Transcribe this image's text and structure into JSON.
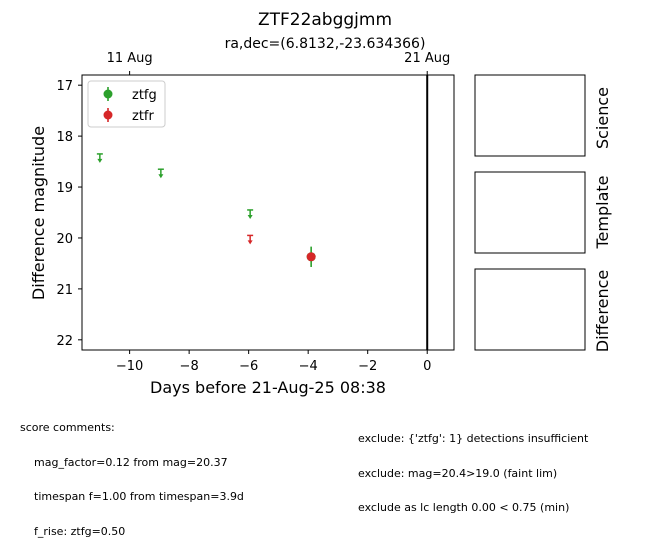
{
  "chart_data": {
    "type": "scatter",
    "title": "ZTF22abggjmm",
    "subtitle": "ra,dec=(6.8132,-23.634366)",
    "xlabel": "Days before 21-Aug-25 08:38",
    "ylabel": "Difference magnitude",
    "xlim": [
      -11.6,
      0.9
    ],
    "ylim": [
      22.2,
      16.8
    ],
    "y_inverted": true,
    "x_ticks": [
      -10,
      -8,
      -6,
      -4,
      -2,
      0
    ],
    "x_tick_labels": [
      "−10",
      "−8",
      "−6",
      "−4",
      "−2",
      "0"
    ],
    "y_ticks": [
      17,
      18,
      19,
      20,
      21,
      22
    ],
    "y_tick_labels": [
      "17",
      "18",
      "19",
      "20",
      "21",
      "22"
    ],
    "top_axis_ticks": [
      {
        "x": -10.0,
        "label": "11 Aug"
      },
      {
        "x": 0.0,
        "label": "21 Aug"
      }
    ],
    "vline_x": 0.0,
    "legend_placement": "top-left",
    "grid": false,
    "series": [
      {
        "name": "ztfg",
        "color": "#2ca02c",
        "detections": [
          {
            "x": -3.9,
            "y": 20.37,
            "yerr": 0.2
          }
        ],
        "upper_limits": [
          {
            "x": -11.0,
            "y": 18.35
          },
          {
            "x": -8.95,
            "y": 18.65
          },
          {
            "x": -5.95,
            "y": 19.45
          }
        ]
      },
      {
        "name": "ztfr",
        "color": "#d62728",
        "detections": [
          {
            "x": -3.9,
            "y": 20.37,
            "yerr": 0.07
          }
        ],
        "upper_limits": [
          {
            "x": -5.95,
            "y": 19.95
          }
        ]
      }
    ]
  },
  "panels": [
    {
      "label": "Science"
    },
    {
      "label": "Template"
    },
    {
      "label": "Difference"
    }
  ],
  "comments": {
    "left_title": "score comments:",
    "left_lines": [
      "mag_factor=0.12 from mag=20.37",
      "timespan f=1.00 from timespan=3.9d",
      "f_rise: ztfg=0.50"
    ],
    "right_lines": [
      "exclude: {'ztfg': 1} detections insufficient",
      "exclude: mag=20.4>19.0 (faint lim)",
      "exclude as lc length 0.00 < 0.75 (min)"
    ]
  }
}
